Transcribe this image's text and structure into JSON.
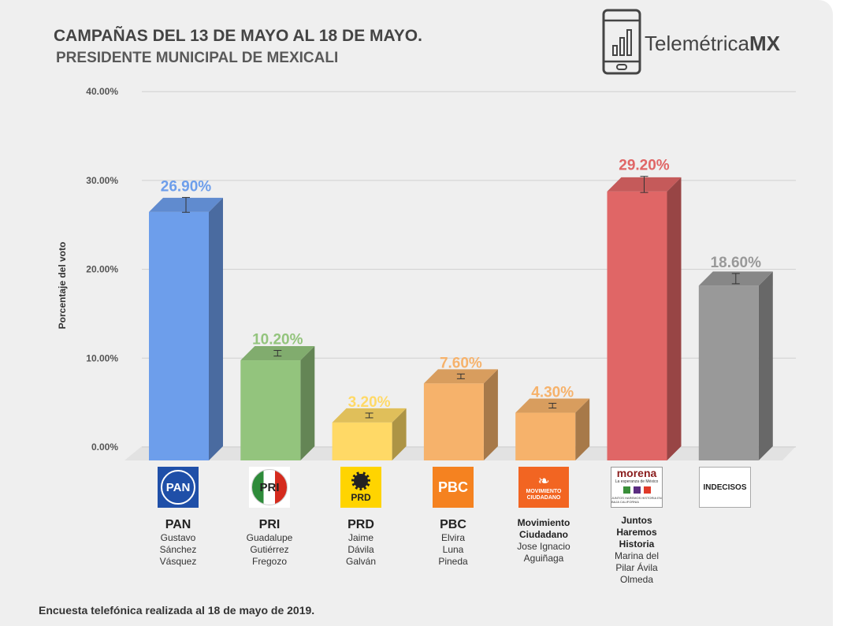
{
  "header": {
    "title": "CAMPAÑAS DEL 13 DE MAYO AL 18 DE MAYO.",
    "subtitle": "PRESIDENTE MUNICIPAL DE MEXICALI"
  },
  "brand": {
    "name_light": "Telemétrica",
    "name_bold": "MX",
    "icon": "phone-bar-chart-icon"
  },
  "footnote": "Encuesta telefónica realizada al 18 de mayo de 2019.",
  "chart_data": {
    "type": "bar",
    "title": "CAMPAÑAS DEL 13 DE MAYO AL 18 DE MAYO.",
    "subtitle": "PRESIDENTE MUNICIPAL DE MEXICALI",
    "xlabel": "",
    "ylabel": "Porcentaje del voto",
    "ylim": [
      0,
      40
    ],
    "y_ticks": [
      "0.00%",
      "10.00%",
      "20.00%",
      "30.00%",
      "40.00%"
    ],
    "grid": true,
    "error_bars": true,
    "categories": [
      "PAN",
      "PRI",
      "PRD",
      "PBC",
      "Movimiento Ciudadano",
      "Juntos Haremos Historia",
      "INDECISOS"
    ],
    "values": [
      26.9,
      10.2,
      3.2,
      7.6,
      4.3,
      29.2,
      18.6
    ],
    "value_labels": [
      "26.90%",
      "10.20%",
      "3.20%",
      "7.60%",
      "4.30%",
      "29.20%",
      "18.60%"
    ],
    "colors": [
      "#6d9eeb",
      "#93c47d",
      "#ffd966",
      "#f6b26b",
      "#f6b26b",
      "#e06666",
      "#999999"
    ],
    "label_colors": [
      "#6d9eeb",
      "#93c47d",
      "#ffd966",
      "#f6b26b",
      "#f6b26b",
      "#e06666",
      "#999999"
    ]
  },
  "parties": [
    {
      "logo_text": "PAN",
      "logo_icon": "pan-logo",
      "name": "PAN",
      "candidate": "Gustavo\nSánchez\nVásquez"
    },
    {
      "logo_text": "PRI",
      "logo_icon": "pri-logo",
      "name": "PRI",
      "candidate": "Guadalupe\nGutiérrez\nFregozo"
    },
    {
      "logo_text": "PRD",
      "logo_icon": "prd-sun-logo",
      "name": "PRD",
      "candidate": "Jaime\nDávila\nGalván"
    },
    {
      "logo_text": "PBC",
      "logo_icon": "pbc-logo",
      "name": "PBC",
      "candidate": "Elvira\nLuna\nPineda"
    },
    {
      "logo_text": "MOVIMIENTO\nCIUDADANO",
      "logo_icon": "eagle-logo",
      "name": "Movimiento\nCiudadano",
      "candidate": "Jose Ignacio\nAguiñaga"
    },
    {
      "logo_text": "morena",
      "logo_sub": "La esperanza de México",
      "logo_small": "JUNTOS HAREMOS HISTORIA EN BAJA CALIFORNIA",
      "logo_icon": "morena-coalition-logo",
      "name": "Juntos\nHaremos\nHistoria",
      "candidate": "Marina del\nPilar Ávila\nOlmeda"
    },
    {
      "logo_text": "INDECISOS",
      "logo_icon": "indecisos-box",
      "name": "",
      "candidate": ""
    }
  ]
}
